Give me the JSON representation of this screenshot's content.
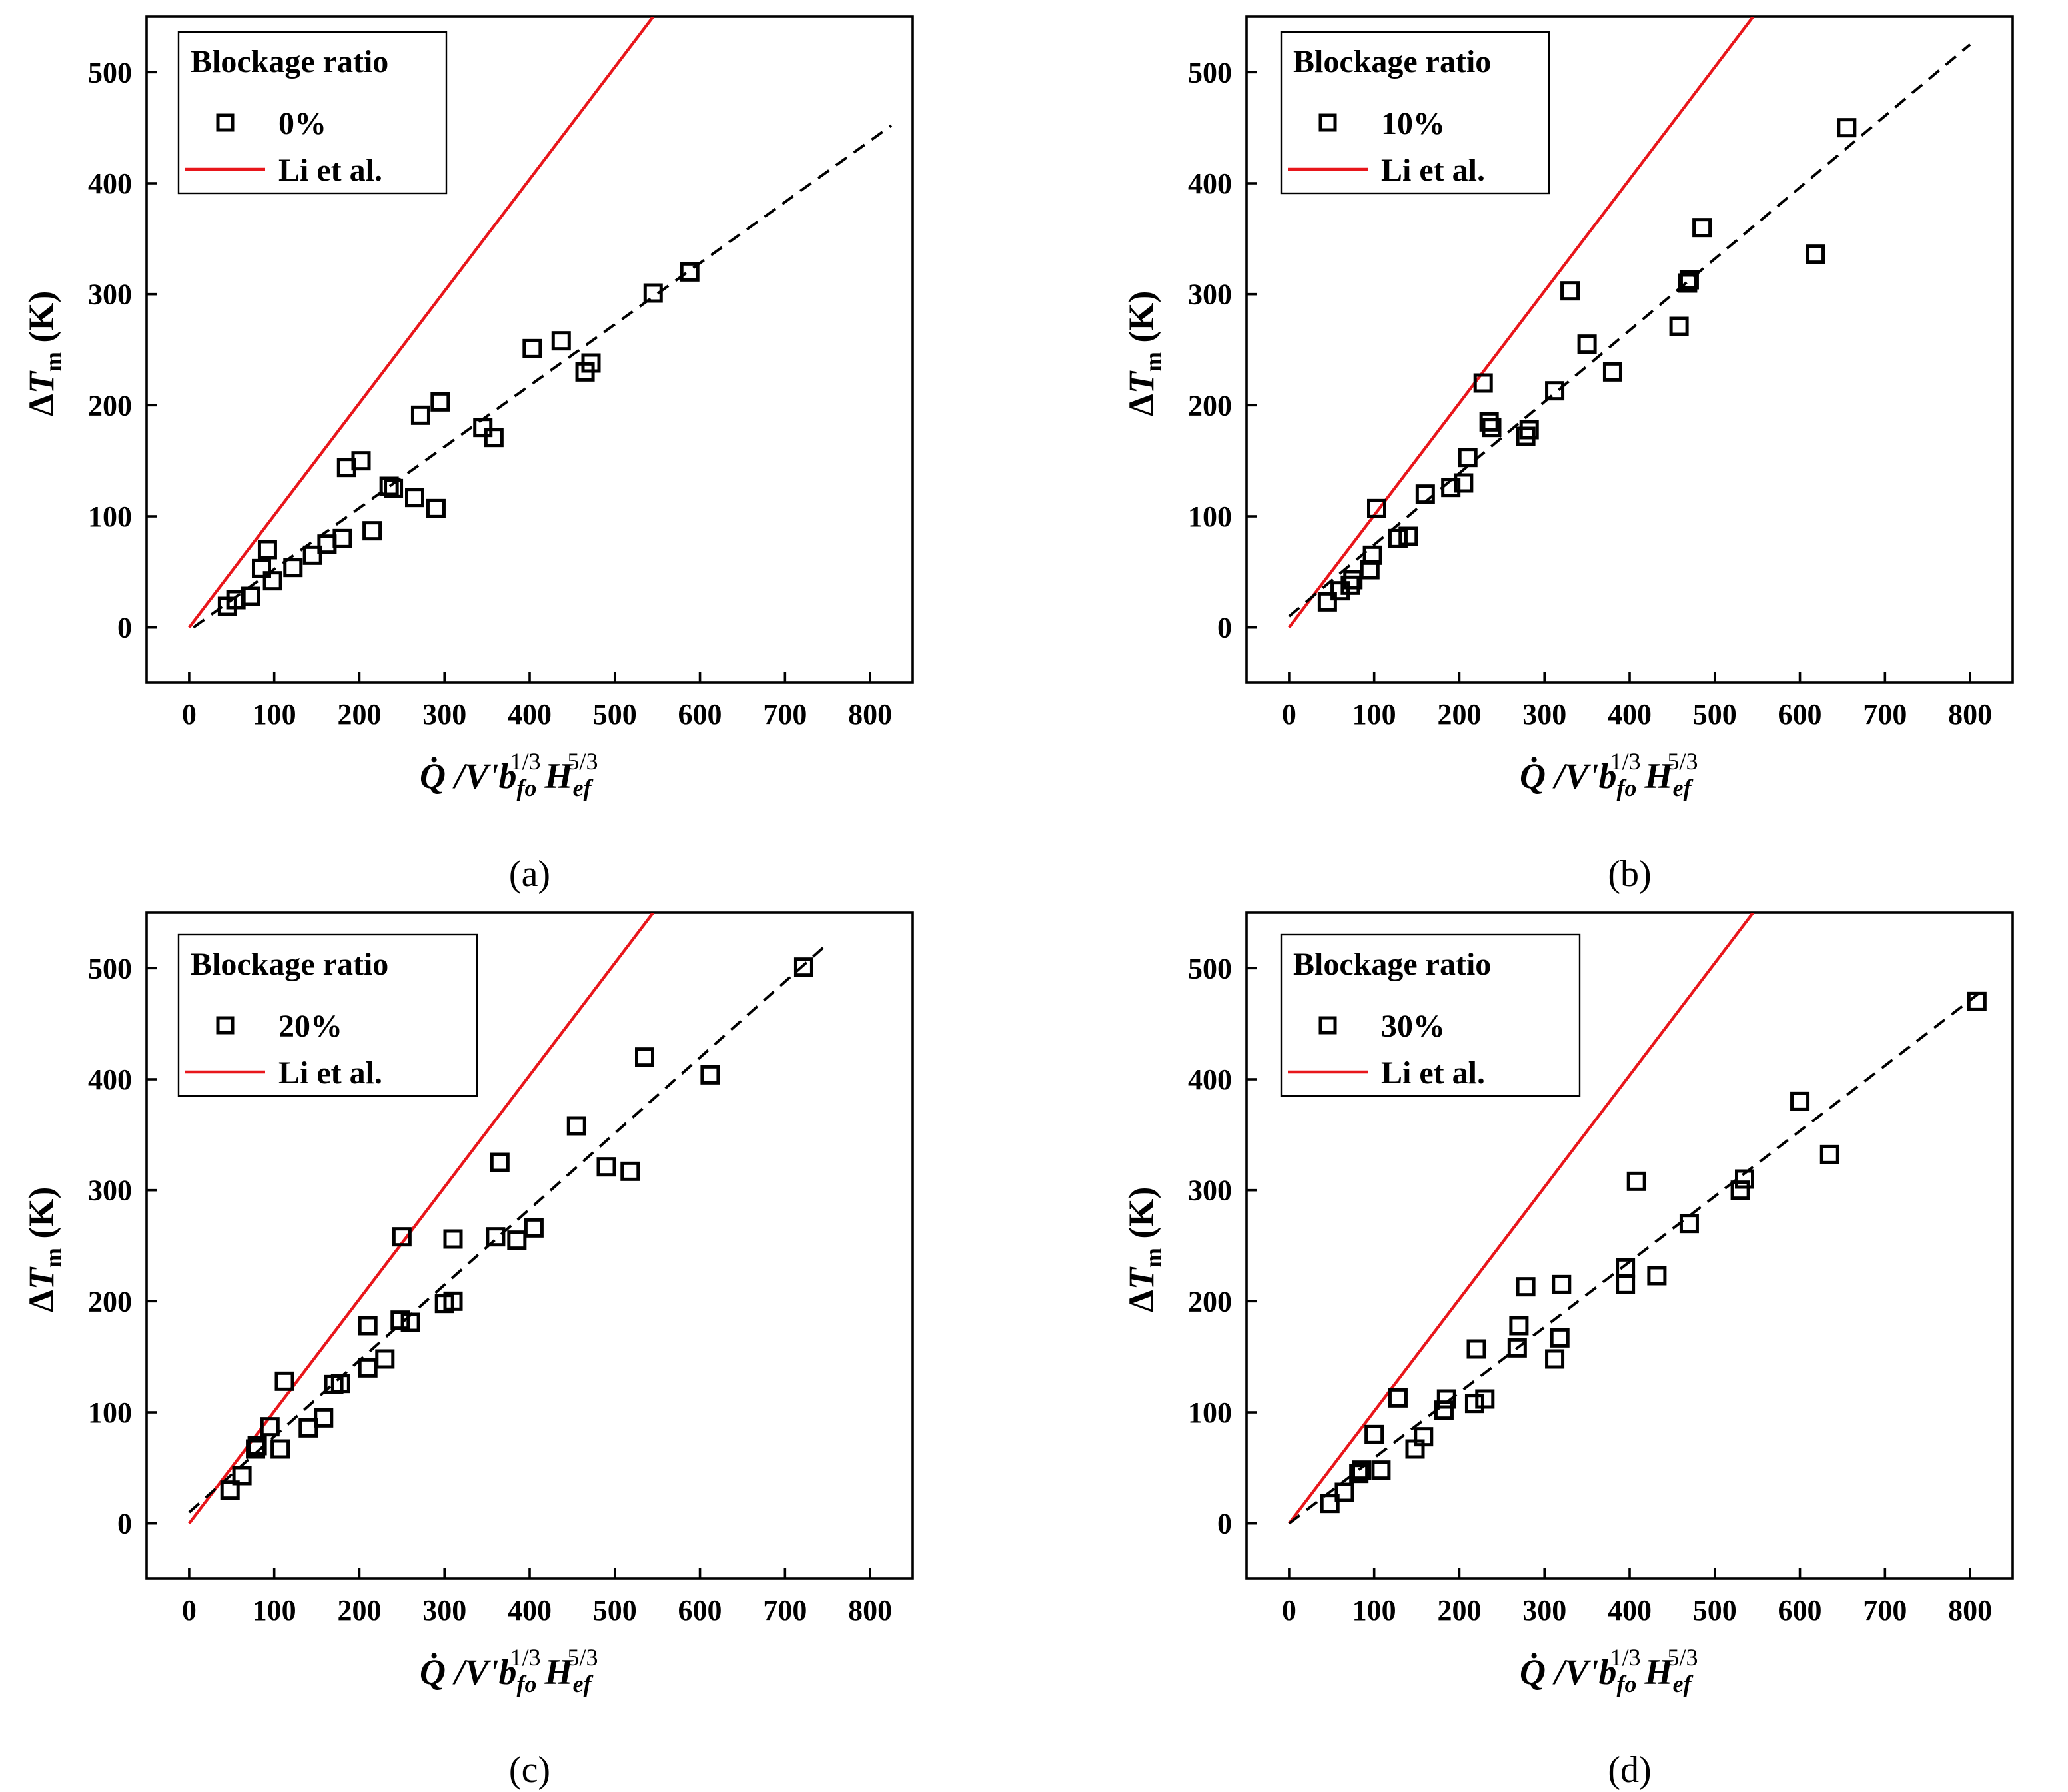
{
  "chart_data": [
    {
      "type": "scatter",
      "caption": "(a)",
      "xlim": [
        -50,
        850
      ],
      "ylim": [
        -50,
        550
      ],
      "xticks": [
        0,
        100,
        200,
        300,
        400,
        500,
        600,
        700,
        800
      ],
      "yticks": [
        0,
        100,
        200,
        300,
        400,
        500
      ],
      "xlabel": "Q̇ /V'b_fo^{1/3} H_ef^{5/3}",
      "ylabel": "ΔT_m (K)",
      "legend": {
        "title": "Blockage ratio",
        "series_label": "0%",
        "line_label": "Li et al.",
        "placement": "top-left"
      },
      "li_line": [
        [
          0,
          0
        ],
        [
          545,
          550
        ]
      ],
      "fit_line": [
        [
          5,
          0
        ],
        [
          825,
          452
        ]
      ],
      "series": [
        {
          "name": "0%",
          "points": [
            [
              45,
              19
            ],
            [
              55,
              25
            ],
            [
              72,
              28
            ],
            [
              85,
              53
            ],
            [
              92,
              70
            ],
            [
              98,
              42
            ],
            [
              122,
              54
            ],
            [
              145,
              65
            ],
            [
              162,
              75
            ],
            [
              180,
              80
            ],
            [
              185,
              144
            ],
            [
              202,
              150
            ],
            [
              215,
              87
            ],
            [
              235,
              127
            ],
            [
              240,
              125
            ],
            [
              265,
              117
            ],
            [
              272,
              191
            ],
            [
              290,
              107
            ],
            [
              295,
              203
            ],
            [
              345,
              180
            ],
            [
              358,
              171
            ],
            [
              403,
              251
            ],
            [
              437,
              258
            ],
            [
              465,
              230
            ],
            [
              472,
              238
            ],
            [
              545,
              301
            ],
            [
              588,
              320
            ]
          ]
        }
      ]
    },
    {
      "type": "scatter",
      "caption": "(b)",
      "xlim": [
        -50,
        850
      ],
      "ylim": [
        -50,
        550
      ],
      "xticks": [
        0,
        100,
        200,
        300,
        400,
        500,
        600,
        700,
        800
      ],
      "yticks": [
        0,
        100,
        200,
        300,
        400,
        500
      ],
      "xlabel": "Q̇ /V'b_fo^{1/3} H_ef^{5/3}",
      "ylabel": "ΔT_m (K)",
      "legend": {
        "title": "Blockage ratio",
        "series_label": "10%",
        "line_label": "Li et al.",
        "placement": "top-left"
      },
      "li_line": [
        [
          0,
          0
        ],
        [
          545,
          550
        ]
      ],
      "fit_line": [
        [
          0,
          10
        ],
        [
          800,
          525
        ]
      ],
      "series": [
        {
          "name": "10%",
          "points": [
            [
              45,
              23
            ],
            [
              60,
              33
            ],
            [
              72,
              38
            ],
            [
              75,
              43
            ],
            [
              95,
              52
            ],
            [
              98,
              65
            ],
            [
              103,
              107
            ],
            [
              128,
              80
            ],
            [
              140,
              82
            ],
            [
              160,
              120
            ],
            [
              190,
              126
            ],
            [
              205,
              130
            ],
            [
              210,
              153
            ],
            [
              228,
              220
            ],
            [
              235,
              185
            ],
            [
              238,
              180
            ],
            [
              278,
              172
            ],
            [
              282,
              178
            ],
            [
              312,
              213
            ],
            [
              330,
              303
            ],
            [
              350,
              255
            ],
            [
              380,
              230
            ],
            [
              458,
              271
            ],
            [
              468,
              310
            ],
            [
              470,
              313
            ],
            [
              485,
              360
            ],
            [
              618,
              336
            ],
            [
              655,
              450
            ]
          ]
        }
      ]
    },
    {
      "type": "scatter",
      "caption": "(c)",
      "xlim": [
        -50,
        850
      ],
      "ylim": [
        -50,
        550
      ],
      "xticks": [
        0,
        100,
        200,
        300,
        400,
        500,
        600,
        700,
        800
      ],
      "yticks": [
        0,
        100,
        200,
        300,
        400,
        500
      ],
      "xlabel": "Q̇ /V'b_fo^{1/3} H_ef^{5/3}",
      "ylabel": "ΔT_m (K)",
      "legend": {
        "title": "Blockage ratio",
        "series_label": "20%",
        "line_label": "Li et al.",
        "placement": "top-left"
      },
      "li_line": [
        [
          0,
          0
        ],
        [
          545,
          550
        ]
      ],
      "fit_line": [
        [
          0,
          10
        ],
        [
          750,
          522
        ]
      ],
      "series": [
        {
          "name": "20%",
          "points": [
            [
              48,
              30
            ],
            [
              62,
              43
            ],
            [
              78,
              67
            ],
            [
              80,
              70
            ],
            [
              95,
              87
            ],
            [
              107,
              67
            ],
            [
              112,
              128
            ],
            [
              140,
              86
            ],
            [
              158,
              95
            ],
            [
              170,
              125
            ],
            [
              178,
              126
            ],
            [
              210,
              140
            ],
            [
              210,
              178
            ],
            [
              230,
              148
            ],
            [
              248,
              183
            ],
            [
              250,
              258
            ],
            [
              260,
              181
            ],
            [
              300,
              198
            ],
            [
              310,
              200
            ],
            [
              310,
              256
            ],
            [
              360,
              258
            ],
            [
              365,
              325
            ],
            [
              385,
              255
            ],
            [
              405,
              266
            ],
            [
              455,
              358
            ],
            [
              490,
              321
            ],
            [
              518,
              317
            ],
            [
              535,
              420
            ],
            [
              612,
              404
            ],
            [
              722,
              501
            ]
          ]
        }
      ]
    },
    {
      "type": "scatter",
      "caption": "(d)",
      "xlim": [
        -50,
        850
      ],
      "ylim": [
        -50,
        550
      ],
      "xticks": [
        0,
        100,
        200,
        300,
        400,
        500,
        600,
        700,
        800
      ],
      "yticks": [
        0,
        100,
        200,
        300,
        400,
        500
      ],
      "xlabel": "Q̇ /V'b_fo^{1/3} H_ef^{5/3}",
      "ylabel": "ΔT_m (K)",
      "legend": {
        "title": "Blockage ratio",
        "series_label": "30%",
        "line_label": "Li et al.",
        "placement": "top-left"
      },
      "li_line": [
        [
          0,
          0
        ],
        [
          545,
          550
        ]
      ],
      "fit_line": [
        [
          0,
          0
        ],
        [
          815,
          480
        ]
      ],
      "series": [
        {
          "name": "30%",
          "points": [
            [
              48,
              18
            ],
            [
              65,
              28
            ],
            [
              82,
              45
            ],
            [
              85,
              48
            ],
            [
              100,
              80
            ],
            [
              108,
              48
            ],
            [
              128,
              113
            ],
            [
              148,
              67
            ],
            [
              158,
              78
            ],
            [
              182,
              102
            ],
            [
              185,
              112
            ],
            [
              218,
              108
            ],
            [
              220,
              157
            ],
            [
              230,
              112
            ],
            [
              268,
              158
            ],
            [
              270,
              178
            ],
            [
              278,
              213
            ],
            [
              312,
              148
            ],
            [
              318,
              167
            ],
            [
              320,
              215
            ],
            [
              395,
              215
            ],
            [
              395,
              230
            ],
            [
              408,
              308
            ],
            [
              432,
              223
            ],
            [
              470,
              270
            ],
            [
              530,
              300
            ],
            [
              535,
              310
            ],
            [
              600,
              380
            ],
            [
              635,
              332
            ],
            [
              808,
              470
            ]
          ]
        }
      ]
    }
  ]
}
